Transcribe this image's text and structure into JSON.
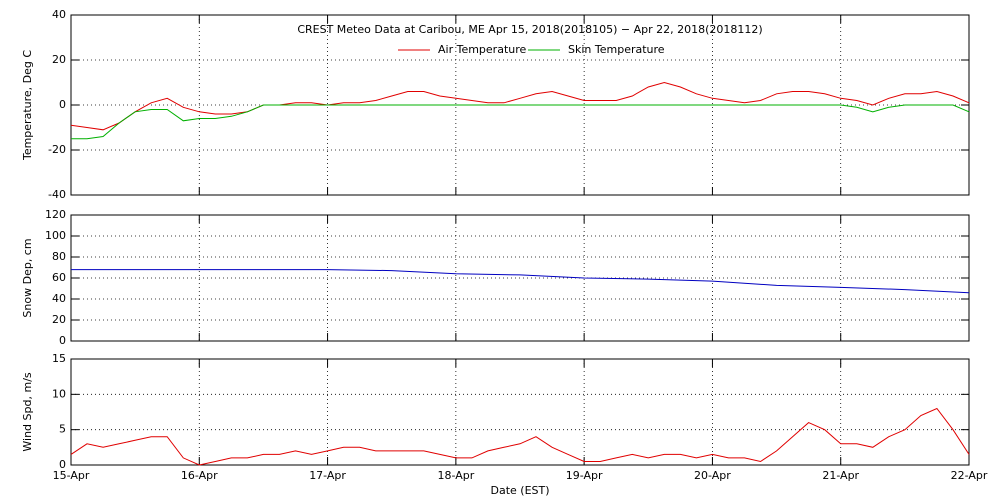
{
  "chart_data": [
    {
      "type": "line",
      "title": "CREST Meteo Data at Caribou, ME   Apr 15, 2018(2018105) − Apr 22, 2018(2018112)",
      "ylabel": "Temperature, Deg C",
      "x": [
        0,
        0.125,
        0.25,
        0.375,
        0.5,
        0.625,
        0.75,
        0.875,
        1,
        1.125,
        1.25,
        1.375,
        1.5,
        1.625,
        1.75,
        1.875,
        2,
        2.125,
        2.25,
        2.375,
        2.5,
        2.625,
        2.75,
        2.875,
        3,
        3.125,
        3.25,
        3.375,
        3.5,
        3.625,
        3.75,
        3.875,
        4,
        4.125,
        4.25,
        4.375,
        4.5,
        4.625,
        4.75,
        4.875,
        5,
        5.125,
        5.25,
        5.375,
        5.5,
        5.625,
        5.75,
        5.875,
        6,
        6.125,
        6.25,
        6.375,
        6.5,
        6.625,
        6.75,
        6.875,
        7
      ],
      "series": [
        {
          "name": "Air Temperature",
          "color": "#e00000",
          "values": [
            -9,
            -10,
            -11,
            -8,
            -3,
            1,
            3,
            -1,
            -3,
            -4,
            -4,
            -3,
            0,
            0,
            1,
            1,
            0,
            1,
            1,
            2,
            4,
            6,
            6,
            4,
            3,
            2,
            1,
            1,
            3,
            5,
            6,
            4,
            2,
            2,
            2,
            4,
            8,
            10,
            8,
            5,
            3,
            2,
            1,
            2,
            5,
            6,
            6,
            5,
            3,
            2,
            0,
            3,
            5,
            5,
            6,
            4,
            1
          ]
        },
        {
          "name": "Skin Temperature",
          "color": "#00b000",
          "values": [
            -15,
            -15,
            -14,
            -8,
            -3,
            -2,
            -2,
            -7,
            -6,
            -6,
            -5,
            -3,
            0,
            0,
            0,
            0,
            0,
            0,
            0,
            0,
            0,
            0,
            0,
            0,
            0,
            0,
            0,
            0,
            0,
            0,
            0,
            0,
            0,
            0,
            0,
            0,
            0,
            0,
            0,
            0,
            0,
            0,
            0,
            0,
            0,
            0,
            0,
            0,
            0,
            -1,
            -3,
            -1,
            0,
            0,
            0,
            0,
            -3
          ]
        }
      ],
      "xlim": [
        0,
        7
      ],
      "xticks": [
        0,
        1,
        2,
        3,
        4,
        5,
        6,
        7
      ],
      "ylim": [
        -40,
        40
      ],
      "yticks": [
        -40,
        -20,
        0,
        20,
        40
      ],
      "grid": true,
      "legend": "top"
    },
    {
      "type": "line",
      "ylabel": "Snow Dep, cm",
      "x": [
        0,
        0.5,
        1,
        1.5,
        2,
        2.5,
        3,
        3.5,
        4,
        4.5,
        5,
        5.5,
        6,
        6.5,
        7
      ],
      "series": [
        {
          "color": "#0000c0",
          "values": [
            68,
            68,
            68,
            68,
            68,
            67,
            64,
            63,
            60,
            59,
            57,
            53,
            51,
            49,
            46
          ]
        }
      ],
      "xlim": [
        0,
        7
      ],
      "xticks": [
        0,
        1,
        2,
        3,
        4,
        5,
        6,
        7
      ],
      "ylim": [
        0,
        120
      ],
      "yticks": [
        0,
        20,
        40,
        60,
        80,
        100,
        120
      ],
      "grid": true
    },
    {
      "type": "line",
      "ylabel": "Wind Spd, m/s",
      "xlabel": "Date (EST)",
      "x": [
        0,
        0.125,
        0.25,
        0.375,
        0.5,
        0.625,
        0.75,
        0.875,
        1,
        1.125,
        1.25,
        1.375,
        1.5,
        1.625,
        1.75,
        1.875,
        2,
        2.125,
        2.25,
        2.375,
        2.5,
        2.625,
        2.75,
        2.875,
        3,
        3.125,
        3.25,
        3.375,
        3.5,
        3.625,
        3.75,
        3.875,
        4,
        4.125,
        4.25,
        4.375,
        4.5,
        4.625,
        4.75,
        4.875,
        5,
        5.125,
        5.25,
        5.375,
        5.5,
        5.625,
        5.75,
        5.875,
        6,
        6.125,
        6.25,
        6.375,
        6.5,
        6.625,
        6.75,
        6.875,
        7
      ],
      "series": [
        {
          "color": "#e00000",
          "values": [
            1.5,
            3,
            2.5,
            3,
            3.5,
            4,
            4,
            1,
            0,
            0.5,
            1,
            1,
            1.5,
            1.5,
            2,
            1.5,
            2,
            2.5,
            2.5,
            2,
            2,
            2,
            2,
            1.5,
            1,
            1,
            2,
            2.5,
            3,
            4,
            2.5,
            1.5,
            0.5,
            0.5,
            1,
            1.5,
            1,
            1.5,
            1.5,
            1,
            1.5,
            1,
            1,
            0.5,
            2,
            4,
            6,
            5,
            3,
            3,
            2.5,
            4,
            5,
            7,
            8,
            5,
            1.5
          ]
        }
      ],
      "xlim": [
        0,
        7
      ],
      "xticks": [
        {
          "value": 0,
          "label": "15-Apr"
        },
        {
          "value": 1,
          "label": "16-Apr"
        },
        {
          "value": 2,
          "label": "17-Apr"
        },
        {
          "value": 3,
          "label": "18-Apr"
        },
        {
          "value": 4,
          "label": "19-Apr"
        },
        {
          "value": 5,
          "label": "20-Apr"
        },
        {
          "value": 6,
          "label": "21-Apr"
        },
        {
          "value": 7,
          "label": "22-Apr"
        }
      ],
      "ylim": [
        0,
        15
      ],
      "yticks": [
        0,
        5,
        10,
        15
      ],
      "grid": true
    }
  ]
}
